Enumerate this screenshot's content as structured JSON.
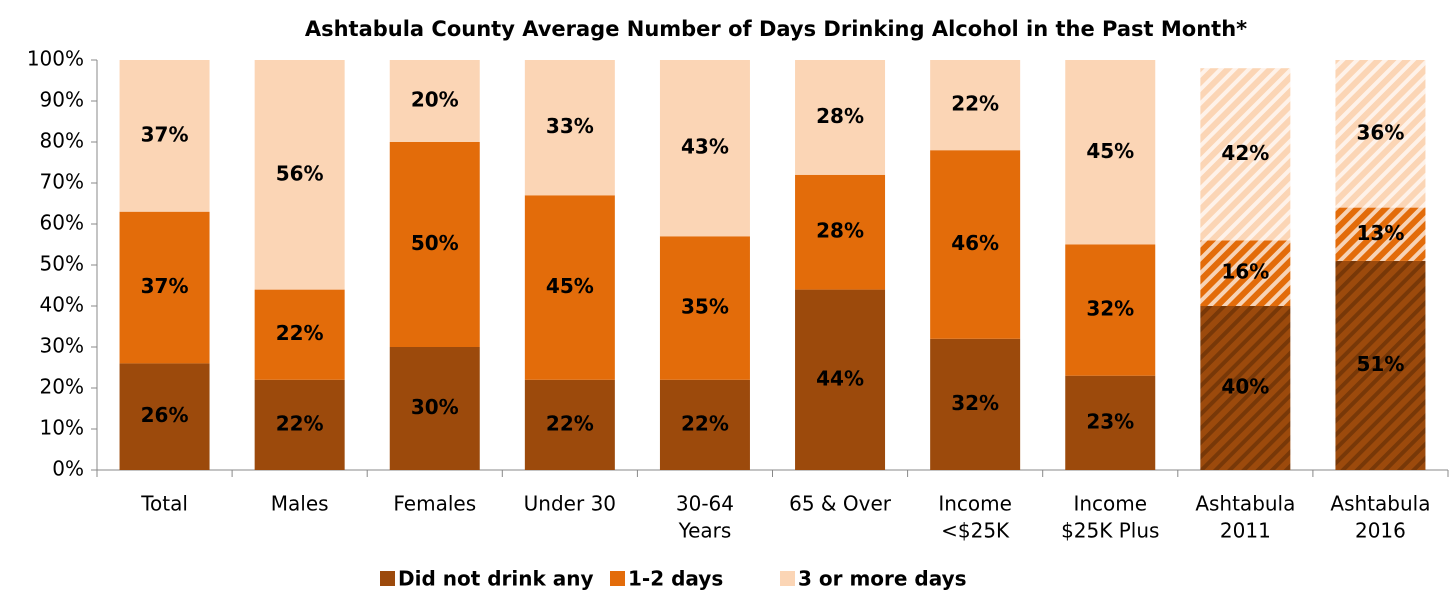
{
  "chart_data": {
    "type": "stacked_bar",
    "title": "Ashtabula County Average Number of Days Drinking Alcohol in the Past Month*",
    "categories": [
      [
        "Total"
      ],
      [
        "Males"
      ],
      [
        "Females"
      ],
      [
        "Under 30"
      ],
      [
        "30-64",
        "Years"
      ],
      [
        "65 & Over"
      ],
      [
        "Income",
        "<$25K"
      ],
      [
        "Income",
        "$25K Plus"
      ],
      [
        "Ashtabula",
        "2011"
      ],
      [
        "Ashtabula",
        "2016"
      ]
    ],
    "hatched": [
      false,
      false,
      false,
      false,
      false,
      false,
      false,
      false,
      true,
      true
    ],
    "series": [
      {
        "name": "Did not drink any",
        "color": "#9c4a0c",
        "label_color": "#ffffff",
        "values": [
          26,
          22,
          30,
          22,
          22,
          44,
          32,
          23,
          40,
          51
        ],
        "value_labels": [
          "26%",
          "22%",
          "30%",
          "22%",
          "22%",
          "44%",
          "32%",
          "23%",
          "40%",
          "51%"
        ]
      },
      {
        "name": "1-2 days",
        "color": "#e36c0a",
        "label_color": "#000000",
        "values": [
          37,
          22,
          50,
          45,
          35,
          28,
          46,
          32,
          16,
          13
        ],
        "value_labels": [
          "37%",
          "22%",
          "50%",
          "45%",
          "35%",
          "28%",
          "46%",
          "32%",
          "16%",
          "13%"
        ]
      },
      {
        "name": "3 or more days",
        "color": "#fbd5b5",
        "label_color": "#000000",
        "values": [
          37,
          56,
          20,
          33,
          43,
          28,
          22,
          45,
          42,
          36
        ],
        "value_labels": [
          "37%",
          "56%",
          "20%",
          "33%",
          "43%",
          "28%",
          "22%",
          "45%",
          "42%",
          "36%"
        ]
      }
    ],
    "ylim": [
      0,
      100
    ],
    "yticks": [
      {
        "value": 0,
        "label": "0%"
      },
      {
        "value": 10,
        "label": "10%"
      },
      {
        "value": 20,
        "label": "20%"
      },
      {
        "value": 30,
        "label": "30%"
      },
      {
        "value": 40,
        "label": "40%"
      },
      {
        "value": 50,
        "label": "50%"
      },
      {
        "value": 60,
        "label": "60%"
      },
      {
        "value": 70,
        "label": "70%"
      },
      {
        "value": 80,
        "label": "80%"
      },
      {
        "value": 90,
        "label": "90%"
      },
      {
        "value": 100,
        "label": "100%"
      }
    ],
    "legend": "bottom"
  }
}
